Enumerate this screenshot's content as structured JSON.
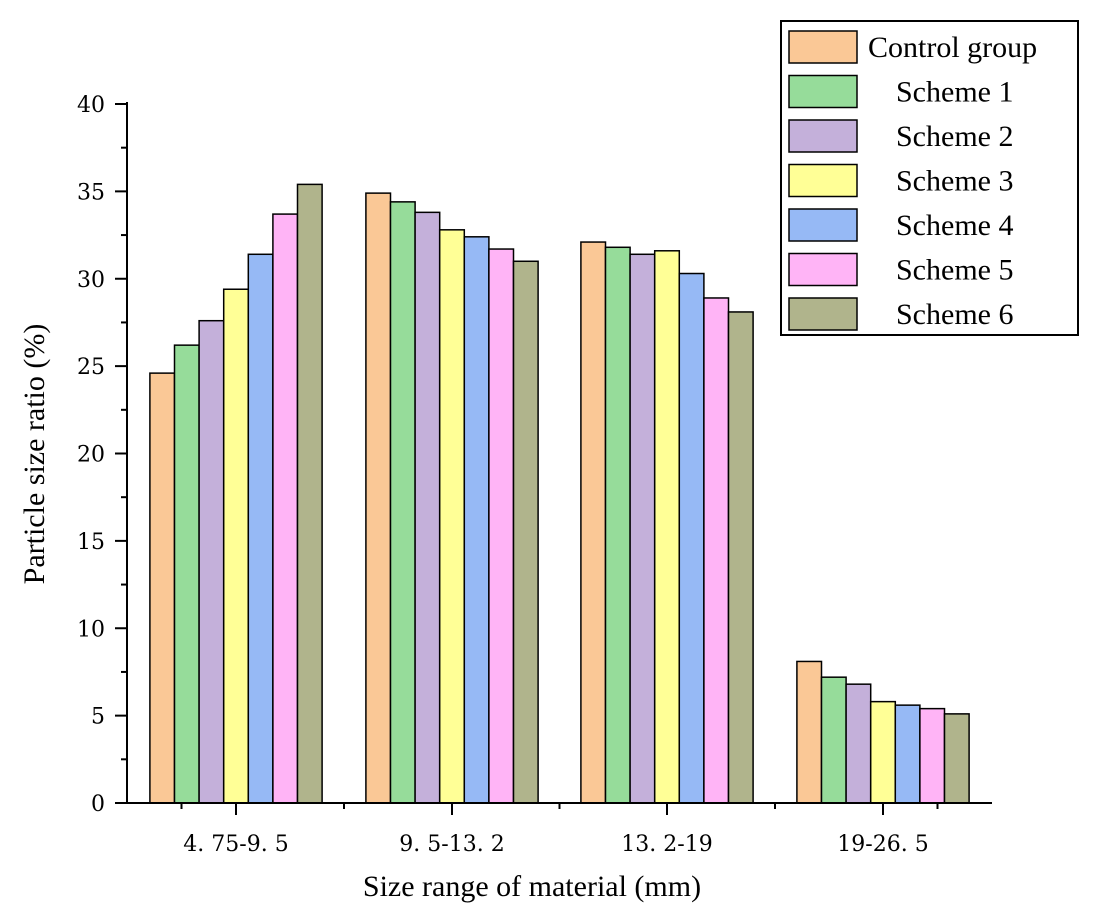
{
  "chart_data": {
    "type": "bar",
    "title": "",
    "xlabel": "Size range of material (mm)",
    "ylabel": "Particle size ratio (%)",
    "ylim": [
      0,
      40
    ],
    "yticks": [
      0,
      5,
      10,
      15,
      20,
      25,
      30,
      35,
      40
    ],
    "ytick_labels": [
      "0",
      "5",
      "10",
      "15",
      "20",
      "25",
      "30",
      "35",
      "40"
    ],
    "categories": [
      "4.75-9.5",
      "9.5-13.2",
      "13.2-19",
      "19-26.5"
    ],
    "category_labels": [
      "4. 75-9. 5",
      "9. 5-13. 2",
      "13. 2-19",
      "19-26. 5"
    ],
    "legend_position": "top-right",
    "series": [
      {
        "name": "Control group",
        "color": "#FAC896",
        "values": [
          24.6,
          34.9,
          32.1,
          8.1
        ]
      },
      {
        "name": "Scheme 1",
        "color": "#96DC9A",
        "values": [
          26.2,
          34.4,
          31.8,
          7.2
        ]
      },
      {
        "name": "Scheme 2",
        "color": "#C4B0DA",
        "values": [
          27.6,
          33.8,
          31.4,
          6.8
        ]
      },
      {
        "name": "Scheme 3",
        "color": "#FFFF96",
        "values": [
          29.4,
          32.8,
          31.6,
          5.8
        ]
      },
      {
        "name": "Scheme 4",
        "color": "#96B9F5",
        "values": [
          31.4,
          32.4,
          30.3,
          5.6
        ]
      },
      {
        "name": "Scheme 5",
        "color": "#FFB4F6",
        "values": [
          33.7,
          31.7,
          28.9,
          5.4
        ]
      },
      {
        "name": "Scheme 6",
        "color": "#B0B48C",
        "values": [
          35.4,
          31.0,
          28.1,
          5.1
        ]
      }
    ]
  }
}
